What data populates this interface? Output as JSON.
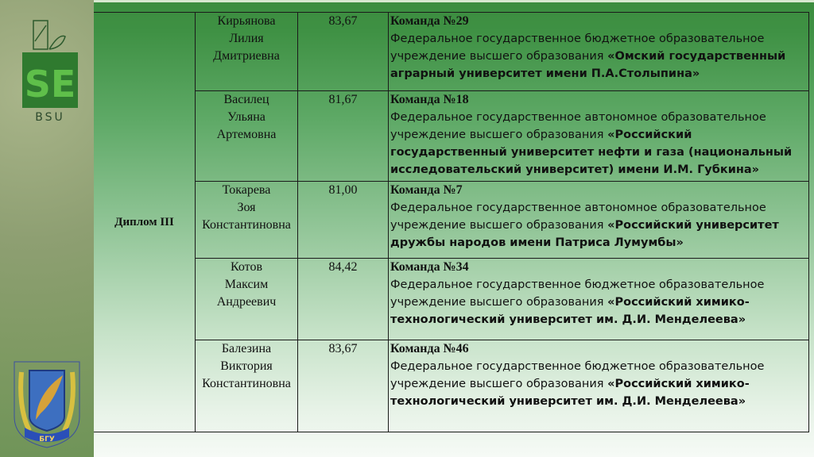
{
  "logos": {
    "top": "SEI BSU",
    "bottom": "БГУ"
  },
  "table": {
    "award": "Диплом III",
    "rows": [
      {
        "name": [
          "Кирьянова",
          "Лилия",
          "Дмитриевна"
        ],
        "score": "83,67",
        "team": "Команда №29",
        "org": "Федеральное государственное бюджетное образовательное учреждение высшего образования ",
        "uni": "«Омский государственный аграрный университет имени П.А.Столыпина»"
      },
      {
        "name": [
          "Василец",
          "Ульяна",
          "Артемовна"
        ],
        "score": "81,67",
        "team": "Команда №18",
        "org": "Федеральное государственное автономное образовательное учреждение высшего образования ",
        "uni": "«Российский государственный университет нефти и газа (национальный исследовательский университет) имени И.М. Губкина»"
      },
      {
        "name": [
          "Токарева",
          "Зоя",
          "Константиновна"
        ],
        "score": "81,00",
        "team": "Команда №7",
        "org": "Федеральное государственное автономное образовательное учреждение высшего образования ",
        "uni": "«Российский университет дружбы народов имени Патриса Лумумбы»"
      },
      {
        "name": [
          "Котов",
          "Максим",
          "Андреевич"
        ],
        "score": "84,42",
        "team": "Команда №34",
        "org": "Федеральное государственное бюджетное образовательное учреждение высшего образования ",
        "uni": "«Российский химико-технологический университет им. Д.И. Менделеева»"
      },
      {
        "name": [
          "Балезина",
          "Виктория",
          "Константиновна"
        ],
        "score": "83,67",
        "team": "Команда №46",
        "org": "Федеральное государственное бюджетное образовательное учреждение высшего образования ",
        "uni": "«Российский химико-технологический университет им. Д.И. Менделеева»"
      }
    ]
  }
}
